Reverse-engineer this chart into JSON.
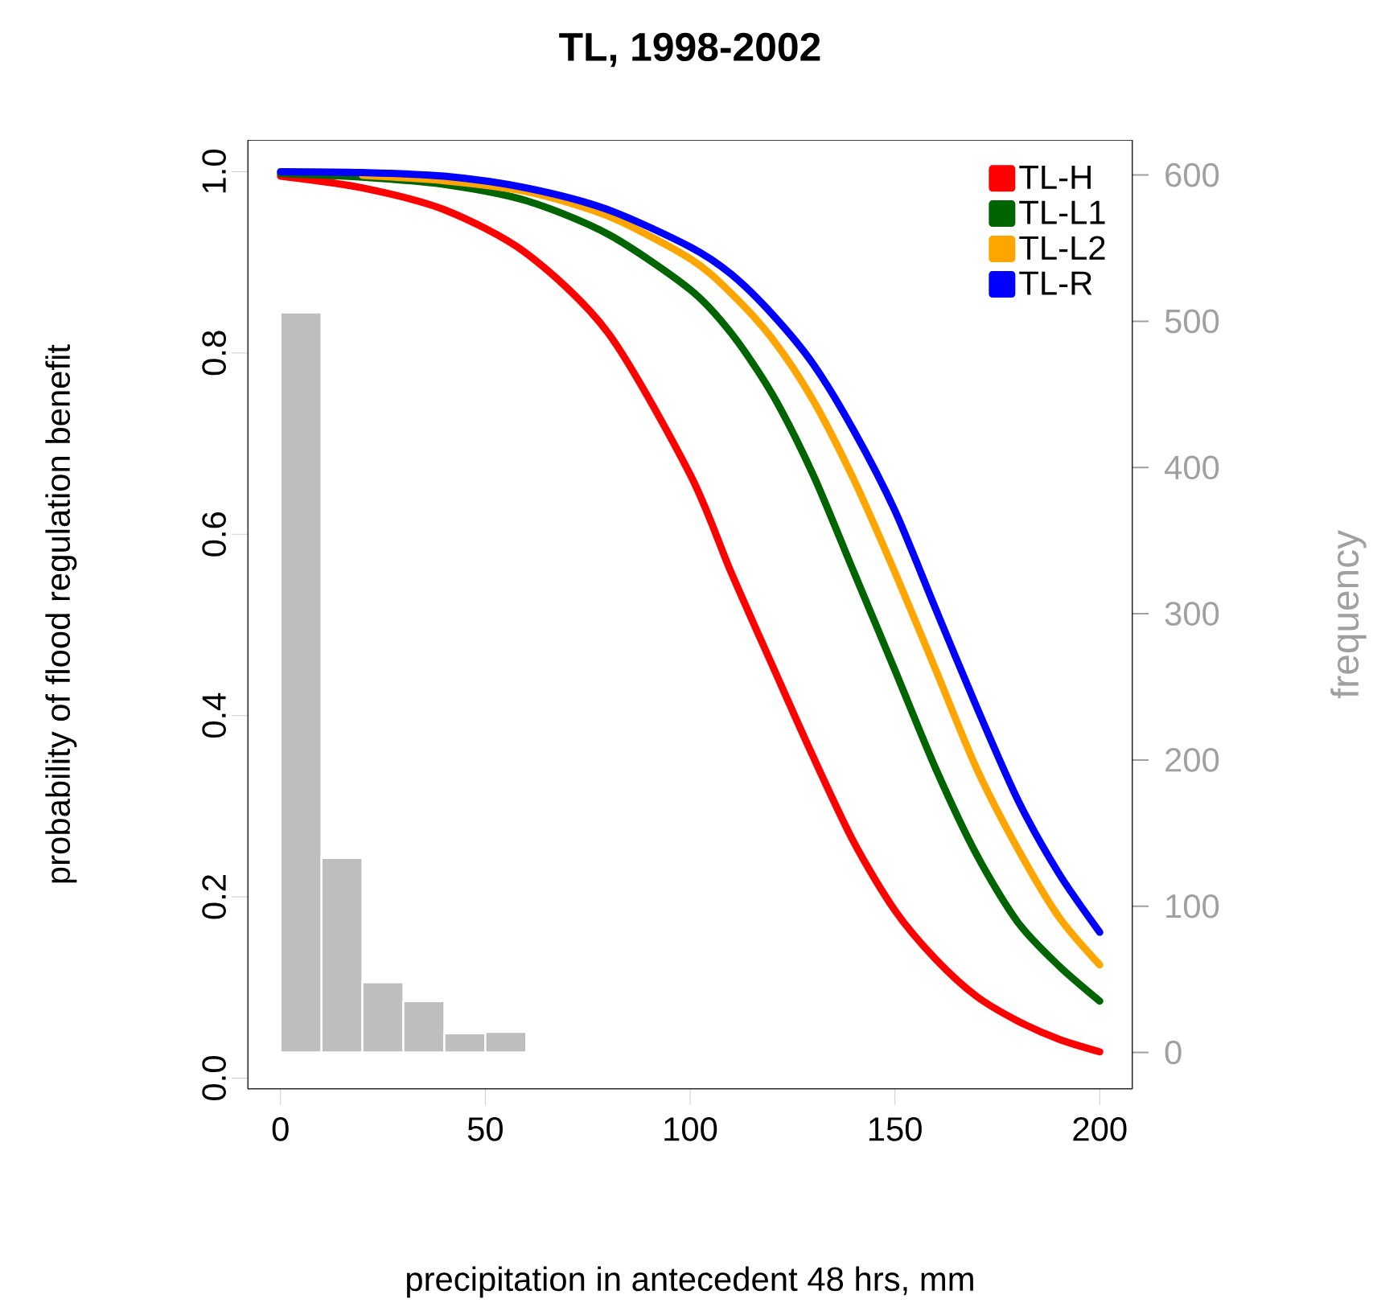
{
  "chart_data": {
    "type": "line",
    "title": "TL, 1998-2002",
    "xlabel": "precipitation in antecedent 48 hrs, mm",
    "ylabel": "probability of flood regulation benefit",
    "y2label": "frequency",
    "x": [
      0,
      20,
      40,
      60,
      80,
      100,
      110,
      120,
      130,
      140,
      150,
      160,
      170,
      180,
      190,
      200
    ],
    "series": [
      {
        "type": "histogram",
        "axis": "y2",
        "color": "#bebebe",
        "bins": [
          0,
          10,
          20,
          30,
          40,
          50,
          60
        ],
        "values": [
          506,
          133,
          48,
          35,
          13,
          14
        ]
      },
      {
        "name": "TL-H",
        "color": "#ff0000",
        "values": [
          0.995,
          0.982,
          0.958,
          0.91,
          0.822,
          0.666,
          0.558,
          0.456,
          0.355,
          0.26,
          0.185,
          0.131,
          0.09,
          0.063,
          0.043,
          0.029
        ]
      },
      {
        "name": "TL-L1",
        "color": "#006400",
        "values": [
          0.998,
          0.994,
          0.986,
          0.968,
          0.931,
          0.87,
          0.822,
          0.755,
          0.666,
          0.558,
          0.45,
          0.341,
          0.246,
          0.172,
          0.124,
          0.085
        ]
      },
      {
        "name": "TL-L2",
        "color": "#ffa500",
        "values": [
          null,
          0.996,
          0.99,
          0.978,
          0.951,
          0.904,
          0.866,
          0.816,
          0.748,
          0.66,
          0.558,
          0.45,
          0.341,
          0.253,
          0.178,
          0.125
        ]
      },
      {
        "name": "TL-R",
        "color": "#0000ff",
        "values": [
          1.0,
          0.999,
          0.995,
          0.982,
          0.958,
          0.917,
          0.887,
          0.843,
          0.788,
          0.714,
          0.626,
          0.517,
          0.409,
          0.307,
          0.226,
          0.161
        ]
      }
    ],
    "xlim": [
      -8,
      208
    ],
    "ylim": [
      -0.012,
      1.035
    ],
    "y2lim": [
      -25,
      624
    ],
    "xticks": [
      0,
      50,
      100,
      150,
      200
    ],
    "yticks": [
      {
        "value": 0,
        "label": "0.0"
      },
      0.2,
      0.4,
      0.6,
      0.8,
      {
        "value": 1,
        "label": "1.0"
      }
    ],
    "y2ticks": [
      0,
      100,
      200,
      300,
      400,
      500,
      600
    ],
    "legend": "top right"
  }
}
